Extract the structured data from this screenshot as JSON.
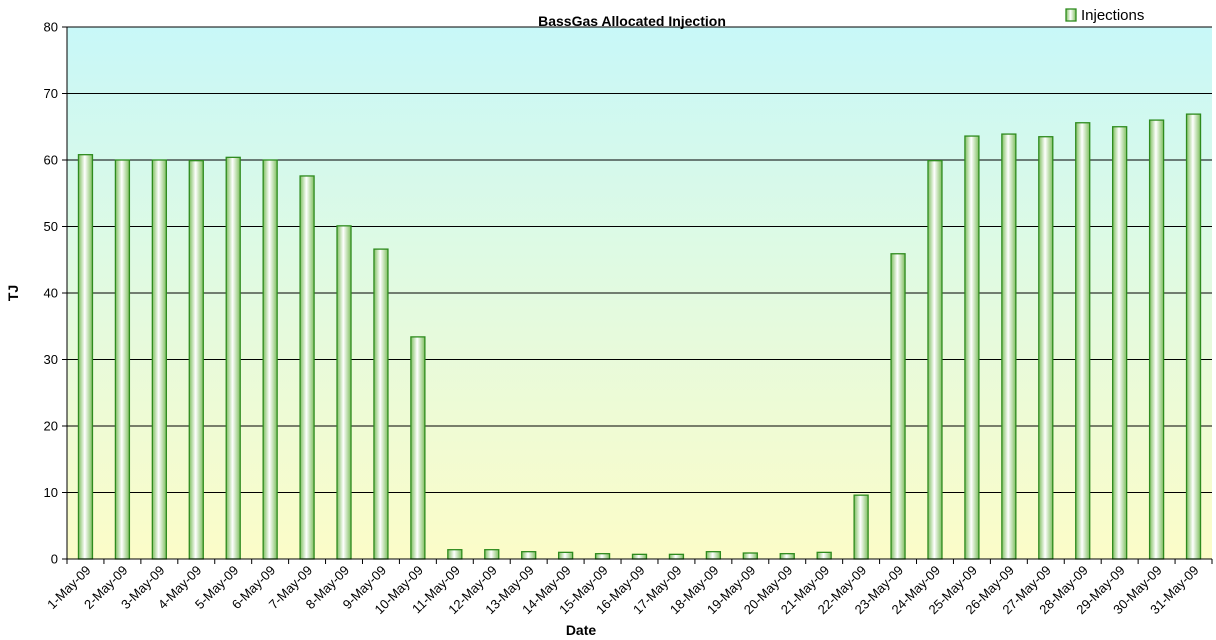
{
  "chart_data": {
    "type": "bar",
    "title": "BassGas Allocated Injection",
    "xlabel": "Date",
    "ylabel": "TJ",
    "ylim": [
      0,
      80
    ],
    "yticks": [
      0,
      10,
      20,
      30,
      40,
      50,
      60,
      70,
      80
    ],
    "grid": true,
    "legend_position": "top-right",
    "colors": {
      "bar_border": "#2e8b1e",
      "bar_fill_light": "#ffffff",
      "bar_fill_dark": "#7fbf60",
      "background_top": "#c8f8f8",
      "background_bottom": "#fcfcc8",
      "gridline": "#000000"
    },
    "categories": [
      "1-May-09",
      "2-May-09",
      "3-May-09",
      "4-May-09",
      "5-May-09",
      "6-May-09",
      "7-May-09",
      "8-May-09",
      "9-May-09",
      "10-May-09",
      "11-May-09",
      "12-May-09",
      "13-May-09",
      "14-May-09",
      "15-May-09",
      "16-May-09",
      "17-May-09",
      "18-May-09",
      "19-May-09",
      "20-May-09",
      "21-May-09",
      "22-May-09",
      "23-May-09",
      "24-May-09",
      "25-May-09",
      "26-May-09",
      "27-May-09",
      "28-May-09",
      "29-May-09",
      "30-May-09",
      "31-May-09"
    ],
    "series": [
      {
        "name": "Injections",
        "values": [
          60.8,
          60.0,
          60.0,
          59.9,
          60.4,
          60.0,
          57.6,
          50.1,
          46.6,
          33.4,
          1.4,
          1.4,
          1.1,
          1.0,
          0.8,
          0.7,
          0.7,
          1.1,
          0.9,
          0.8,
          1.0,
          9.6,
          45.9,
          59.9,
          63.6,
          63.9,
          63.5,
          65.6,
          65.0,
          66.0,
          66.9
        ]
      }
    ]
  }
}
